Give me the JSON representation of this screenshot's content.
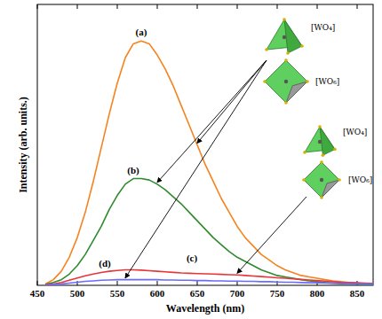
{
  "chart_data": {
    "type": "line",
    "x_label": "Wavelength (nm)",
    "y_label": "Intensity (arb. units.)",
    "x": [
      460,
      470,
      480,
      490,
      500,
      510,
      520,
      530,
      540,
      550,
      560,
      570,
      580,
      590,
      600,
      610,
      620,
      630,
      640,
      650,
      660,
      670,
      680,
      690,
      700,
      710,
      720,
      730,
      740,
      750,
      760,
      770,
      780,
      790,
      800,
      810,
      820,
      830,
      840,
      850,
      860,
      870
    ],
    "series": [
      {
        "name": "(a)",
        "color": "#f5831f",
        "values": [
          0.5,
          2,
          5,
          10,
          17,
          26,
          37,
          49,
          61,
          72,
          81,
          86,
          87,
          86,
          82,
          77,
          71,
          64,
          57,
          50,
          43,
          37,
          31,
          26,
          21,
          17,
          14,
          11,
          9,
          7,
          5.5,
          4.5,
          3.5,
          3,
          2.5,
          2,
          1.6,
          1.3,
          1,
          0.8,
          0.6,
          0.5
        ]
      },
      {
        "name": "(b)",
        "color": "#2e8b2e",
        "values": [
          0.3,
          1,
          2,
          4,
          7,
          11,
          16,
          21,
          27,
          32,
          36,
          38,
          38,
          37.5,
          36,
          34,
          31.5,
          29,
          26,
          23,
          20,
          17,
          14.5,
          12,
          10,
          8.5,
          7,
          5.5,
          4.5,
          3.5,
          3,
          2.5,
          2,
          1.6,
          1.3,
          1,
          0.8,
          0.6,
          0.5,
          0.4,
          0.3,
          0.3
        ]
      },
      {
        "name": "(c)",
        "color": "#e8353a",
        "values": [
          0.2,
          0.5,
          1,
          1.8,
          2.6,
          3.4,
          4,
          4.6,
          5,
          5.3,
          5.5,
          5.5,
          5.4,
          5.2,
          5,
          4.8,
          4.6,
          4.4,
          4.3,
          4.2,
          4.1,
          4,
          3.9,
          3.8,
          3.7,
          3.5,
          3.3,
          3.1,
          2.9,
          2.7,
          2.5,
          2.3,
          2.1,
          1.9,
          1.7,
          1.5,
          1.3,
          1.1,
          1,
          0.9,
          0.8,
          0.7
        ]
      },
      {
        "name": "(d)",
        "color": "#6a6aff",
        "values": [
          0.1,
          0.3,
          0.5,
          0.8,
          1.1,
          1.4,
          1.6,
          1.8,
          1.9,
          2,
          2,
          2,
          2,
          2,
          2,
          1.9,
          1.9,
          1.8,
          1.8,
          1.7,
          1.7,
          1.6,
          1.6,
          1.5,
          1.5,
          1.4,
          1.4,
          1.3,
          1.3,
          1.2,
          1.1,
          1.1,
          1,
          0.9,
          0.9,
          0.8,
          0.7,
          0.7,
          0.6,
          0.6,
          0.5,
          0.5
        ]
      }
    ],
    "xlim": [
      450,
      870
    ],
    "xticks": [
      450,
      500,
      550,
      600,
      650,
      700,
      750,
      800,
      850
    ],
    "ylim": [
      0,
      100
    ],
    "tick_labels": "x",
    "annotations": [
      "[WO₄]",
      "[WO₆]",
      "[WO₄]",
      "[WO₆]"
    ]
  }
}
